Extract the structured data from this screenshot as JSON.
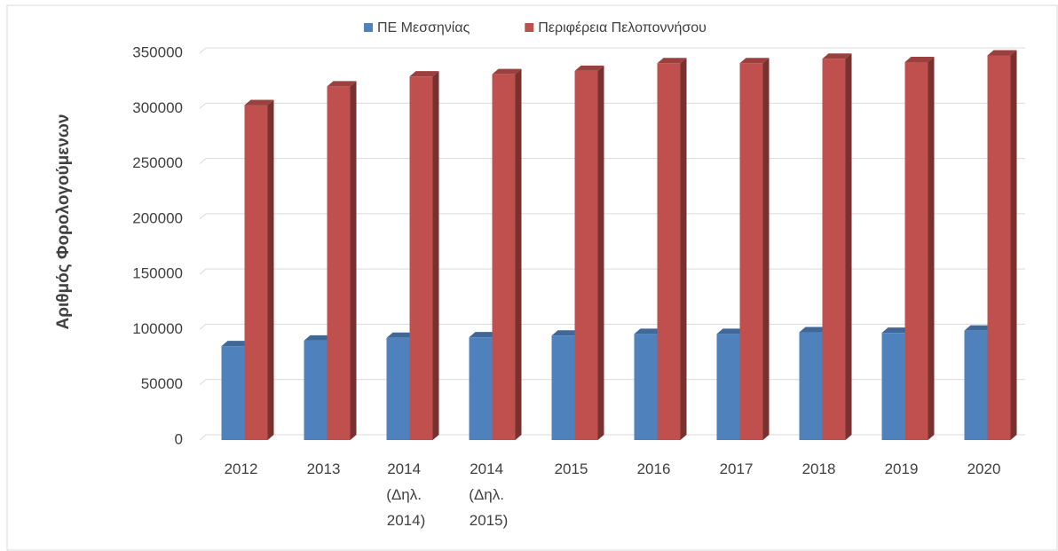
{
  "chart_data": {
    "type": "bar3d",
    "y_label": "Αριθμός Φορολογούμενων",
    "categories": [
      "2012",
      "2013",
      "2014 (Δηλ. 2014)",
      "2014 (Δηλ. 2015)",
      "2015",
      "2016",
      "2017",
      "2018",
      "2019",
      "2020"
    ],
    "series": [
      {
        "name": "ΠΕ Μεσσηνίας",
        "color": "#4f81bd",
        "values": [
          85000,
          90000,
          92500,
          93000,
          94500,
          96000,
          96000,
          97500,
          97000,
          99000
        ]
      },
      {
        "name": "Περιφέρεια Πελοποννήσου",
        "color": "#c0504d",
        "values": [
          303000,
          320000,
          329000,
          331000,
          334000,
          341000,
          341000,
          345000,
          342000,
          348000
        ]
      }
    ],
    "ylim": [
      0,
      350000
    ],
    "yticks": [
      0,
      50000,
      100000,
      150000,
      200000,
      250000,
      300000,
      350000
    ],
    "grid": true,
    "legend": "top"
  }
}
